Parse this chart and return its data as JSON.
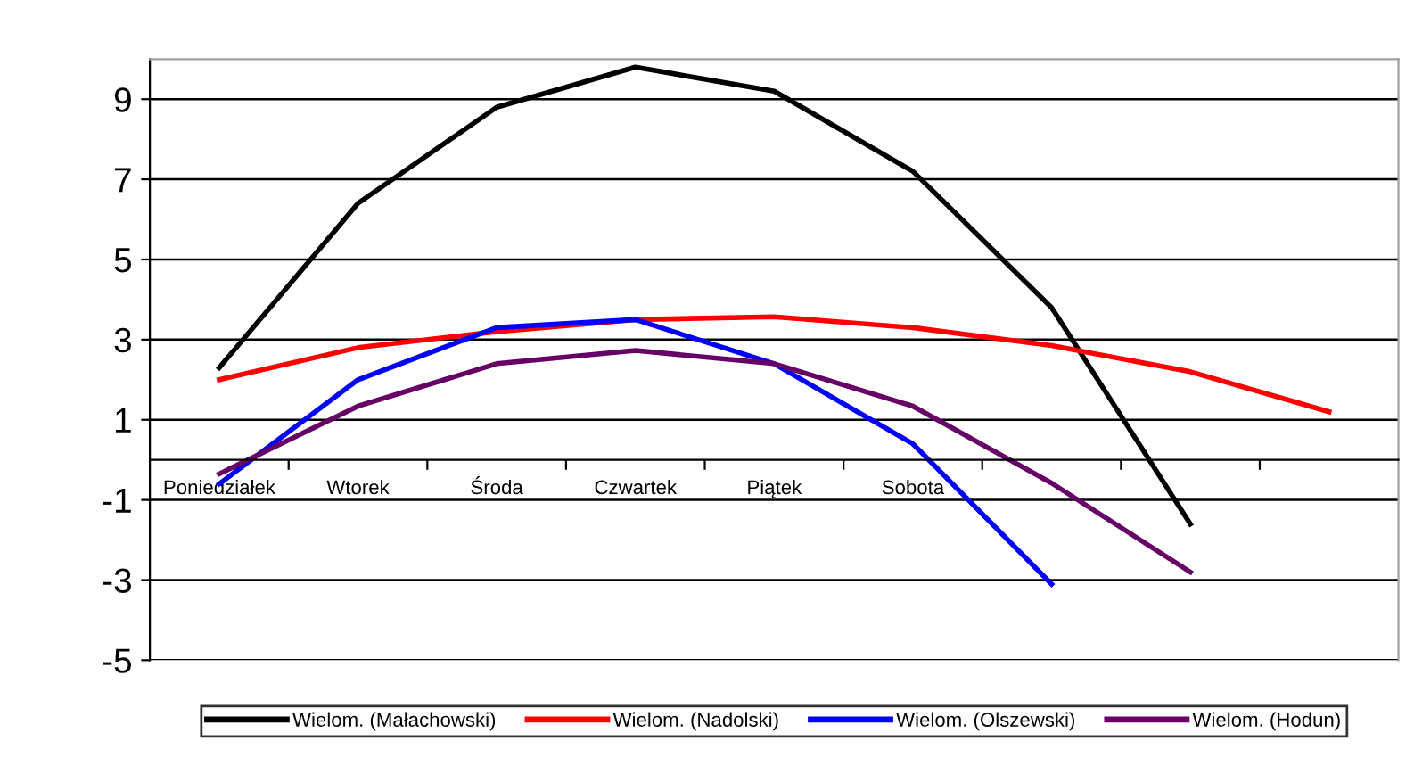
{
  "chart_data": {
    "type": "line",
    "categories": [
      "Poniedziałek",
      "Wtorek",
      "Środa",
      "Czwartek",
      "Piątek",
      "Sobota",
      null,
      null,
      null
    ],
    "series": [
      {
        "name": "Wielom. (Małachowski)",
        "color": "#000000",
        "values": [
          2.3,
          6.4,
          8.8,
          9.8,
          9.2,
          7.2,
          3.8,
          -1.6,
          null
        ]
      },
      {
        "name": "Wielom. (Nadolski)",
        "color": "#ff0000",
        "values": [
          2.0,
          2.8,
          3.2,
          3.5,
          3.57,
          3.3,
          2.85,
          2.2,
          1.2
        ]
      },
      {
        "name": "Wielom. (Olszewski)",
        "color": "#0000ff",
        "values": [
          -0.6,
          2.0,
          3.3,
          3.5,
          2.4,
          0.4,
          -3.1,
          null,
          null
        ]
      },
      {
        "name": "Wielom. (Hodun)",
        "color": "#660066",
        "values": [
          -0.35,
          1.34,
          2.4,
          2.73,
          2.4,
          1.34,
          -0.58,
          -2.8,
          null
        ]
      }
    ],
    "ylim": [
      -5,
      10
    ],
    "yticks": [
      -5,
      -3,
      -1,
      1,
      3,
      5,
      7,
      9
    ],
    "grid": "y",
    "legend": "bottom",
    "marker": "none",
    "line_style": "solid"
  }
}
